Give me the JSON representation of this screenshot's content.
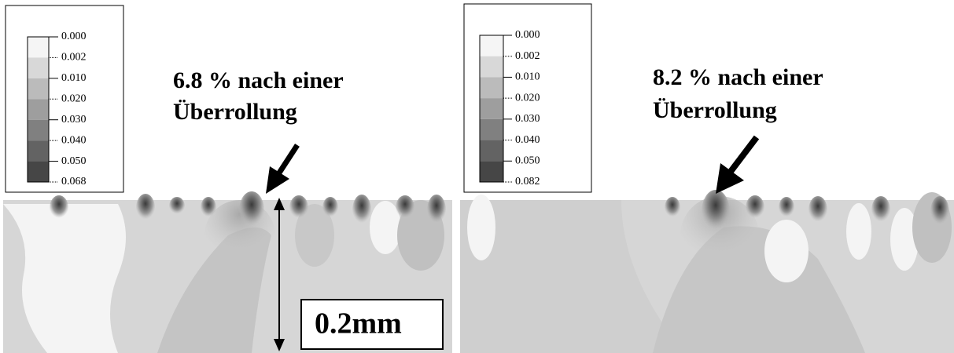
{
  "panels": [
    {
      "legend": {
        "levels": [
          "0.000",
          "0.002",
          "0.010",
          "0.020",
          "0.030",
          "0.040",
          "0.050",
          "0.068"
        ]
      },
      "annotation": [
        "6.8 % nach einer",
        "Überrollung"
      ],
      "scale_label": "0.2mm"
    },
    {
      "legend": {
        "levels": [
          "0.000",
          "0.002",
          "0.010",
          "0.020",
          "0.030",
          "0.040",
          "0.050",
          "0.082"
        ]
      },
      "annotation": [
        "8.2 % nach einer",
        "Überrollung"
      ]
    }
  ]
}
